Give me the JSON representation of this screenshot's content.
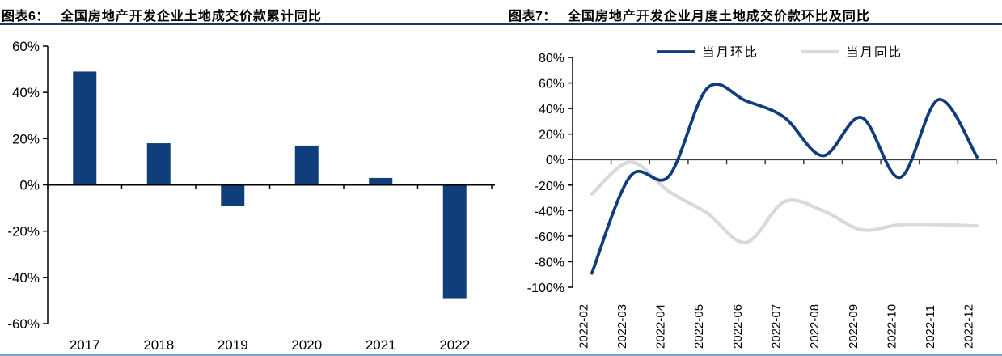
{
  "charts": [
    {
      "header": {
        "tag": "图表6：",
        "title": "全国房地产开发企业土地成交价款累计同比"
      },
      "chart_data": {
        "type": "bar",
        "title": "全国房地产开发企业土地成交价款累计同比",
        "categories": [
          "2017",
          "2018",
          "2019",
          "2020",
          "2021",
          "2022"
        ],
        "values": [
          49,
          18,
          -9,
          17,
          3,
          -49
        ],
        "ylim": [
          -60,
          60
        ],
        "ytick_step": 20,
        "ytick_labels": [
          "60%",
          "40%",
          "20%",
          "0%",
          "-20%",
          "-40%",
          "-60%"
        ],
        "bar_color": "#103e7a",
        "grid": false,
        "legend": null,
        "xlabel": "",
        "ylabel": ""
      }
    },
    {
      "header": {
        "tag": "图表7：",
        "title": "全国房地产开发企业月度土地成交价款环比及同比"
      },
      "chart_data": {
        "type": "line",
        "title": "全国房地产开发企业月度土地成交价款环比及同比",
        "smooth": true,
        "x": [
          "2022-02",
          "2022-03",
          "2022-04",
          "2022-05",
          "2022-06",
          "2022-07",
          "2022-08",
          "2022-09",
          "2022-10",
          "2022-11",
          "2022-12"
        ],
        "series": [
          {
            "name": "当月环比",
            "color": "#103e7a",
            "values": [
              -89,
              -13,
              -13,
              56,
              46,
              33,
              3,
              33,
              -14,
              47,
              2
            ]
          },
          {
            "name": "当月同比",
            "color": "#d9d9d9",
            "values": [
              -27,
              -2,
              -25,
              -42,
              -65,
              -33,
              -40,
              -55,
              -51,
              -51,
              -52
            ]
          }
        ],
        "ylim": [
          -100,
          80
        ],
        "ytick_step": 20,
        "ytick_labels": [
          "80%",
          "60%",
          "40%",
          "20%",
          "0%",
          "-20%",
          "-40%",
          "-60%",
          "-80%",
          "-100%"
        ],
        "legend_position": "top",
        "grid": false,
        "xlabel": "",
        "ylabel": ""
      }
    }
  ],
  "colors": {
    "navy": "#103e7a",
    "series_gray": "#d9d9d9",
    "title_rule": "#1f3864",
    "bottom_rule": "#7ba2cc",
    "axis": "#000000",
    "zero_line": "#3f3f3f"
  }
}
